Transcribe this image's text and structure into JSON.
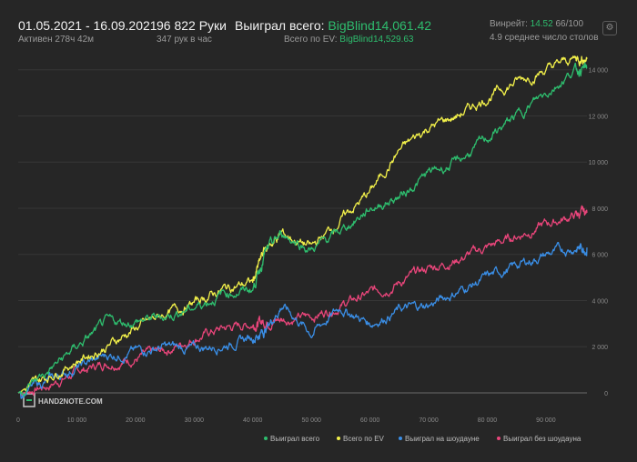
{
  "header": {
    "date_range": "01.05.2021 - 16.09.2021",
    "active": "Активен 278ч 42м",
    "hands": "96 822 Руки",
    "hands_per_hour": "347 рук в час",
    "won_label": "Выиграл всего:",
    "won_value": "BigBlind14,061.42",
    "ev_label": "Всего по EV:",
    "ev_value": "BigBlind14,529.63",
    "winrate_label": "Винрейт:",
    "winrate_value": "14.52",
    "winrate_unit": "66/100",
    "tables_avg": "4.9 среднее число столов"
  },
  "icons": {
    "settings": "gear-icon",
    "logo": "hand2note-logo"
  },
  "watermark": "HAND2NOTE.COM",
  "colors": {
    "background": "#262626",
    "won": "#2ebd6e",
    "ev": "#f2f04a",
    "showdown": "#3a8ee6",
    "nonshowdown": "#e8457a"
  },
  "chart_data": {
    "type": "line",
    "xlim": [
      0,
      97000
    ],
    "ylim": [
      0,
      14500
    ],
    "x_ticks": [
      "0",
      "10 000",
      "20 000",
      "30 000",
      "40 000",
      "50 000",
      "60 000",
      "70 000",
      "80 000",
      "90 000"
    ],
    "y_ticks": [
      "0",
      "2 000",
      "4 000",
      "6 000",
      "8 000",
      "10 000",
      "12 000",
      "14 000"
    ],
    "legend_position": "bottom-right",
    "grid": true,
    "x": [
      0,
      5000,
      10000,
      15000,
      20000,
      25000,
      30000,
      35000,
      40000,
      42000,
      45000,
      50000,
      55000,
      60000,
      65000,
      70000,
      75000,
      80000,
      85000,
      90000,
      95000,
      97000
    ],
    "series": [
      {
        "name": "Выиграл всего",
        "color": "#2ebd6e",
        "values": [
          0,
          900,
          2000,
          3000,
          3100,
          3300,
          3700,
          4300,
          4500,
          6000,
          6900,
          6200,
          7000,
          8000,
          8500,
          9500,
          10000,
          11000,
          12000,
          13000,
          14000,
          14061
        ]
      },
      {
        "name": "Всего по EV",
        "color": "#f2f04a",
        "values": [
          0,
          700,
          1400,
          2000,
          2800,
          3400,
          3900,
          4500,
          4800,
          6200,
          6900,
          6300,
          7500,
          8700,
          10500,
          11500,
          12000,
          12800,
          13500,
          14000,
          14500,
          14530
        ]
      },
      {
        "name": "Выиграл на шоудауне",
        "color": "#3a8ee6",
        "values": [
          0,
          500,
          1100,
          1600,
          1800,
          2000,
          1900,
          2100,
          2400,
          2700,
          3800,
          2600,
          3700,
          3000,
          3600,
          3800,
          4400,
          5000,
          5500,
          6000,
          6300,
          6300
        ]
      },
      {
        "name": "Выиграл без шоудауна",
        "color": "#e8457a",
        "values": [
          0,
          300,
          900,
          1300,
          1500,
          1800,
          2400,
          2800,
          3000,
          3100,
          3200,
          3300,
          3800,
          4300,
          4800,
          5400,
          5800,
          6300,
          6800,
          7300,
          7700,
          7800
        ]
      }
    ]
  }
}
